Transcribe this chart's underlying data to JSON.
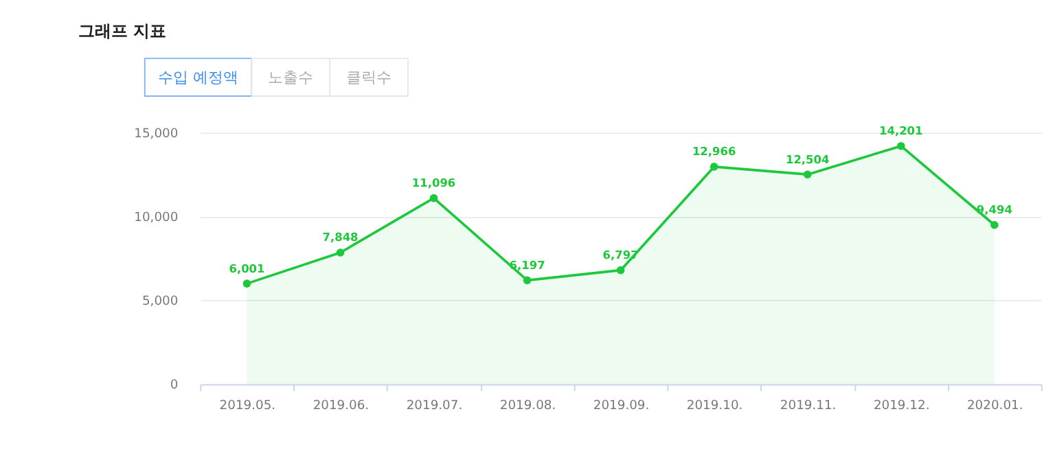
{
  "chart_data": {
    "type": "area",
    "title": "그래프 지표",
    "annotations": [
      "수입 예정액",
      "노출수",
      "클릭수"
    ],
    "categories": [
      "2019.05.",
      "2019.06.",
      "2019.07.",
      "2019.08.",
      "2019.09.",
      "2019.10.",
      "2019.11.",
      "2019.12.",
      "2020.01."
    ],
    "series": [
      {
        "color": "#1ec83c",
        "values": [
          6001,
          7848,
          11096,
          6197,
          6797,
          12966,
          12504,
          14201,
          9494
        ],
        "value_labels": [
          "6,001",
          "7,848",
          "11,096",
          "6,197",
          "6,797",
          "12,966",
          "12,504",
          "14,201",
          "9,494"
        ]
      }
    ],
    "ylim": [
      0,
      15000
    ],
    "yticks": [
      {
        "value": 0,
        "label": "0"
      },
      {
        "value": 5000,
        "label": "5,000"
      },
      {
        "value": 10000,
        "label": "10,000"
      },
      {
        "value": 15000,
        "label": "15,000"
      }
    ],
    "grid": "y",
    "marker": "circle",
    "line_style": "solid"
  }
}
